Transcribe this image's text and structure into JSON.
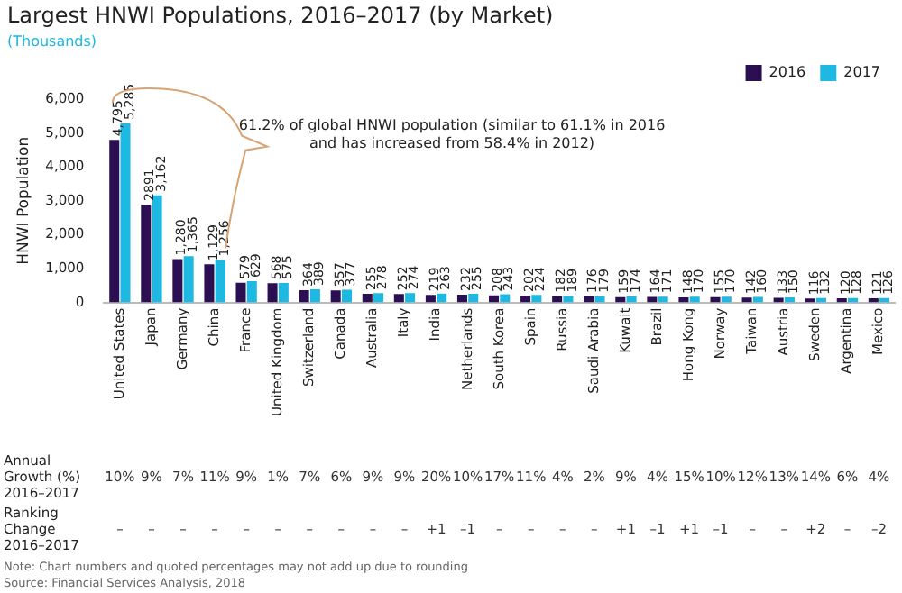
{
  "chart_data": {
    "type": "bar",
    "title": "Largest HNWI Populations, 2016–2017 (by Market)",
    "subtitle": "(Thousands)",
    "ylabel": "HNWI Population",
    "categories": [
      "United States",
      "Japan",
      "Germany",
      "China",
      "France",
      "United Kingdom",
      "Switzerland",
      "Canada",
      "Australia",
      "Italy",
      "India",
      "Netherlands",
      "South Korea",
      "Spain",
      "Russia",
      "Saudi Arabia",
      "Kuwait",
      "Brazil",
      "Hong Kong",
      "Norway",
      "Taiwan",
      "Austria",
      "Sweden",
      "Argentina",
      "Mexico"
    ],
    "series": [
      {
        "name": "2016",
        "color": "#2b0f52",
        "values": [
          4795,
          2891,
          1280,
          1129,
          579,
          568,
          364,
          357,
          255,
          252,
          219,
          232,
          208,
          202,
          182,
          176,
          159,
          164,
          148,
          155,
          142,
          133,
          116,
          120,
          121
        ],
        "value_labels": [
          "4,795",
          "2891",
          "1,280",
          "1,129",
          "579",
          "568",
          "364",
          "357",
          "255",
          "252",
          "219",
          "232",
          "208",
          "202",
          "182",
          "176",
          "159",
          "164",
          "148",
          "155",
          "142",
          "133",
          "116",
          "120",
          "121"
        ]
      },
      {
        "name": "2017",
        "color": "#1db9e2",
        "values": [
          5285,
          3162,
          1365,
          1256,
          629,
          575,
          389,
          377,
          278,
          274,
          263,
          255,
          243,
          224,
          189,
          179,
          174,
          171,
          170,
          170,
          160,
          150,
          132,
          128,
          126
        ],
        "value_labels": [
          "5,285",
          "3,162",
          "1,365",
          "1,256",
          "629",
          "575",
          "389",
          "377",
          "278",
          "274",
          "263",
          "255",
          "243",
          "224",
          "189",
          "179",
          "174",
          "171",
          "170",
          "170",
          "160",
          "150",
          "132",
          "128",
          "126"
        ]
      }
    ],
    "ylim": [
      0,
      6000
    ],
    "yticks": [
      {
        "value": 0,
        "label": "0"
      },
      {
        "value": 1000,
        "label": "1,000"
      },
      {
        "value": 2000,
        "label": "2,000"
      },
      {
        "value": 3000,
        "label": "3,000"
      },
      {
        "value": 4000,
        "label": "4,000"
      },
      {
        "value": 5000,
        "label": "5,000"
      },
      {
        "value": 6000,
        "label": "6,000"
      }
    ],
    "grid": false,
    "legend": "top right",
    "annotations": [
      "61.2% of global HNWI population (similar to 61.1% in 2016 and has increased from 58.4% in 2012)",
      "Annual Growth (%) 2016–2017",
      "Ranking Change 2016–2017",
      "Note: Chart numbers and quoted percentages may not add up due to rounding",
      "Source: Financial Services Analysis, 2018",
      "10%",
      "9%",
      "7%",
      "11%",
      "9%",
      "1%",
      "7%",
      "6%",
      "9%",
      "9%",
      "20%",
      "10%",
      "17%",
      "11%",
      "4%",
      "2%",
      "9%",
      "4%",
      "15%",
      "10%",
      "12%",
      "13%",
      "14%",
      "6%",
      "4%",
      "–",
      "–",
      "–",
      "–",
      "–",
      "–",
      "–",
      "–",
      "–",
      "–",
      "+1",
      "–1",
      "–",
      "–",
      "–",
      "–",
      "+1",
      "–1",
      "+1",
      "–1",
      "–",
      "–",
      "+2",
      "–",
      "–2"
    ]
  }
}
